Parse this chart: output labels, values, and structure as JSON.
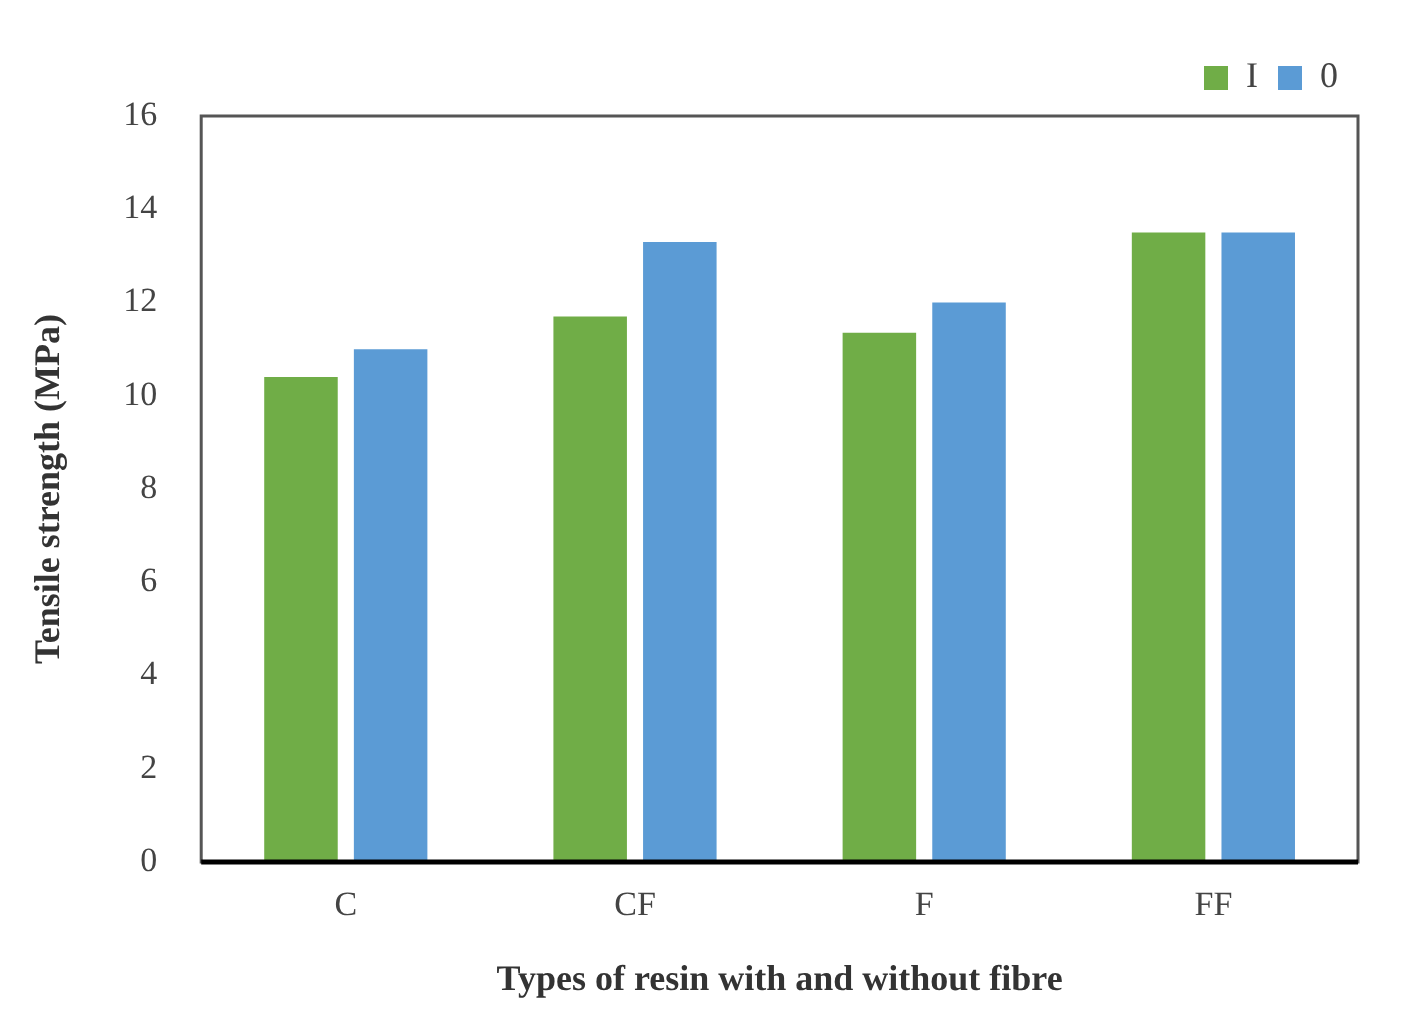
{
  "chart_data": {
    "type": "bar",
    "xlabel": "Types of resin with and without fibre",
    "ylabel": "Tensile strength (MPa)",
    "categories": [
      "C",
      "CF",
      "F",
      "FF"
    ],
    "series": [
      {
        "name": "I",
        "color": "#70ad47",
        "values": [
          10.4,
          11.7,
          11.35,
          13.5
        ]
      },
      {
        "name": "0",
        "color": "#5b9bd5",
        "values": [
          11.0,
          13.3,
          12.0,
          13.5
        ]
      }
    ],
    "ylim": [
      0,
      16
    ],
    "yticks": [
      0,
      2,
      4,
      6,
      8,
      10,
      12,
      14,
      16
    ],
    "grid": false,
    "legend": "top right"
  }
}
